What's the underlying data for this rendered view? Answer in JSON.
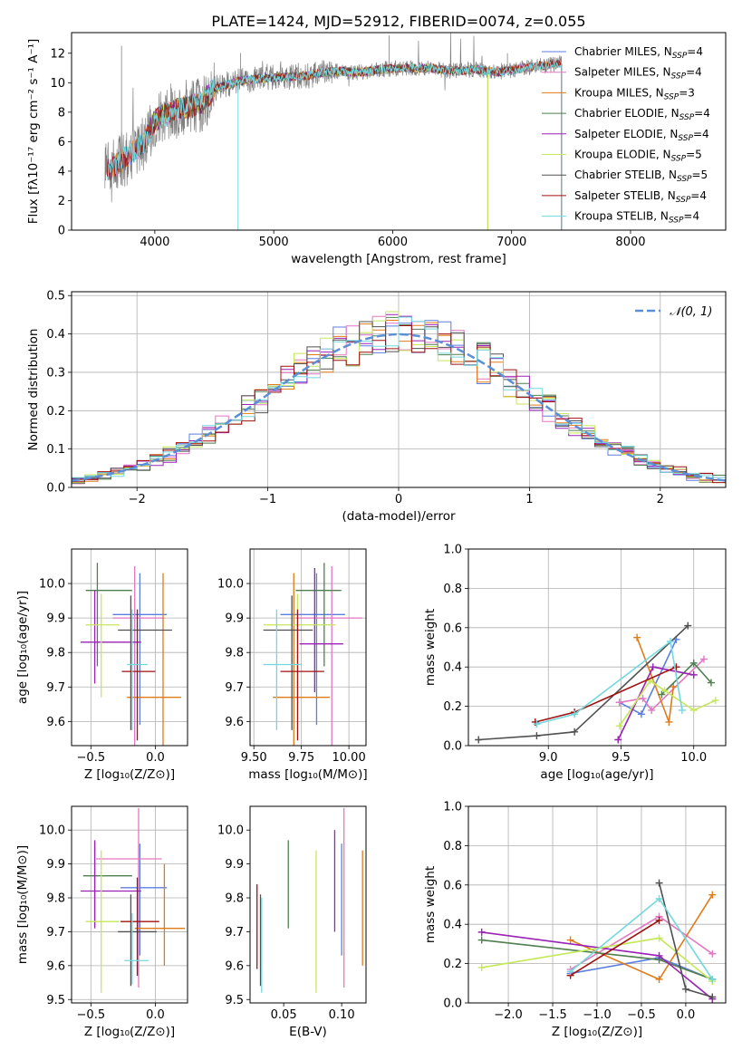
{
  "figure_title": "PLATE=1424, MJD=52912, FIBERID=0074, z=0.055",
  "palette": {
    "Chabrier MILES": "#5b7fe0",
    "Salpeter MILES": "#e377c2",
    "Kroupa MILES": "#e07b18",
    "Chabrier ELODIE": "#4f7f4f",
    "Salpeter ELODIE": "#9a22b5",
    "Kroupa ELODIE": "#c5e85a",
    "Chabrier STELIB": "#505050",
    "Salpeter STELIB": "#a01010",
    "Kroupa STELIB": "#72d8dd",
    "gaussian": "#5b8fd8",
    "data": "#808080"
  },
  "chart_data": [
    {
      "id": "spectrum",
      "type": "line",
      "title": "PLATE=1424, MJD=52912, FIBERID=0074, z=0.055",
      "xlabel": "wavelength [Angstrom, rest frame]",
      "ylabel": "Flux [fλ10⁻¹⁷ erg cm⁻² s⁻¹ A⁻¹]",
      "xlim": [
        3300,
        8800
      ],
      "ylim": [
        0,
        13.4
      ],
      "xticks": [
        4000,
        5000,
        6000,
        7000,
        8000
      ],
      "yticks": [
        0,
        2,
        4,
        6,
        8,
        10,
        12
      ],
      "grid": false,
      "legend_position": "right",
      "legend": [
        {
          "label": "Chabrier MILES, N",
          "sub": "SSP",
          "tail": "=4"
        },
        {
          "label": "Salpeter MILES, N",
          "sub": "SSP",
          "tail": "=4"
        },
        {
          "label": "Kroupa MILES, N",
          "sub": "SSP",
          "tail": "=3"
        },
        {
          "label": "Chabrier ELODIE, N",
          "sub": "SSP",
          "tail": "=4"
        },
        {
          "label": "Salpeter ELODIE, N",
          "sub": "SSP",
          "tail": "=4"
        },
        {
          "label": "Kroupa ELODIE, N",
          "sub": "SSP",
          "tail": "=5"
        },
        {
          "label": "Chabrier STELIB, N",
          "sub": "SSP",
          "tail": "=5"
        },
        {
          "label": "Salpeter STELIB, N",
          "sub": "SSP",
          "tail": "=4"
        },
        {
          "label": "Kroupa STELIB, N",
          "sub": "SSP",
          "tail": "=4"
        }
      ],
      "model_continuum": {
        "x": [
          3600,
          3700,
          3800,
          3900,
          4000,
          4100,
          4200,
          4300,
          4400,
          4500,
          4700,
          4900,
          5100,
          5300,
          5500,
          5700,
          5900,
          6100,
          6300,
          6500,
          6700,
          6900,
          7100,
          7300,
          7400
        ],
        "y": [
          4.0,
          4.6,
          5.2,
          5.9,
          7.4,
          7.9,
          8.2,
          8.4,
          8.7,
          9.6,
          10.1,
          10.3,
          10.4,
          10.5,
          10.8,
          10.7,
          10.9,
          11.0,
          11.0,
          10.8,
          10.9,
          10.7,
          11.0,
          11.2,
          11.3
        ]
      },
      "data_range": [
        3580,
        7420
      ],
      "model_ranges": {
        "MILES": [
          3600,
          7420
        ],
        "ELODIE": [
          3900,
          6800
        ],
        "STELIB": [
          3600,
          7420
        ]
      }
    },
    {
      "id": "residuals",
      "type": "histogram",
      "xlabel": "(data-model)/error",
      "ylabel": "Normed distribution",
      "xlim": [
        -2.5,
        2.5
      ],
      "ylim": [
        0,
        0.51
      ],
      "xticks": [
        -2,
        -1,
        0,
        1,
        2
      ],
      "yticks": [
        0.0,
        0.1,
        0.2,
        0.3,
        0.4,
        0.5
      ],
      "grid": true,
      "legend_position": "top-right",
      "reference": {
        "label": "𝒩(0, 1)",
        "mean": 0,
        "sigma": 1
      },
      "bin_width": 0.1,
      "bin_start": -2.5
    },
    {
      "id": "age-vs-Z",
      "type": "errorbar",
      "xlabel": "Z [log₁₀(Z/Z⊙)]",
      "ylabel": "age  [log₁₀(age/yr)]",
      "xlim": [
        -0.65,
        0.25
      ],
      "ylim": [
        9.53,
        10.1
      ],
      "xticks": [
        -0.5,
        0.0
      ],
      "yticks": [
        9.6,
        9.7,
        9.8,
        9.9,
        10.0
      ],
      "grid": true,
      "points": [
        {
          "model": "Chabrier MILES",
          "x": -0.12,
          "y": 9.91,
          "xerr": [
            0.21,
            0.21
          ],
          "yerr": [
            0.32,
            0.12
          ]
        },
        {
          "model": "Salpeter MILES",
          "x": -0.16,
          "y": 9.9,
          "xerr": [
            0.17,
            0.23
          ],
          "yerr": [
            0.37,
            0.15
          ]
        },
        {
          "model": "Kroupa MILES",
          "x": 0.06,
          "y": 9.67,
          "xerr": [
            0.28,
            0.14
          ],
          "yerr": [
            0.19,
            0.36
          ]
        },
        {
          "model": "Chabrier ELODIE",
          "x": -0.45,
          "y": 9.98,
          "xerr": [
            0.09,
            0.27
          ],
          "yerr": [
            0.22,
            0.08
          ]
        },
        {
          "model": "Salpeter ELODIE",
          "x": -0.47,
          "y": 9.83,
          "xerr": [
            0.11,
            0.36
          ],
          "yerr": [
            0.12,
            0.15
          ]
        },
        {
          "model": "Kroupa ELODIE",
          "x": -0.42,
          "y": 9.88,
          "xerr": [
            0.12,
            0.14
          ],
          "yerr": [
            0.21,
            0.09
          ]
        },
        {
          "model": "Chabrier STELIB",
          "x": -0.19,
          "y": 9.865,
          "xerr": [
            0.1,
            0.32
          ],
          "yerr": [
            0.29,
            0.1
          ]
        },
        {
          "model": "Salpeter STELIB",
          "x": -0.14,
          "y": 9.745,
          "xerr": [
            0.12,
            0.14
          ],
          "yerr": [
            0.2,
            0.18
          ]
        },
        {
          "model": "Kroupa STELIB",
          "x": -0.18,
          "y": 9.765,
          "xerr": [
            0.04,
            0.12
          ],
          "yerr": [
            0.19,
            0.16
          ]
        }
      ]
    },
    {
      "id": "age-vs-mass",
      "type": "errorbar",
      "xlabel": "mass [log₁₀(M/M⊙)]",
      "ylabel": "",
      "xlim": [
        9.48,
        10.09
      ],
      "ylim": [
        9.53,
        10.1
      ],
      "xticks": [
        9.5,
        9.75,
        10.0
      ],
      "yticks": [
        9.6,
        9.7,
        9.8,
        9.9,
        10.0
      ],
      "grid": true,
      "points": [
        {
          "model": "Chabrier MILES",
          "x": 9.83,
          "y": 9.91,
          "xerr": [
            0.19,
            0.15
          ],
          "yerr": [
            0.32,
            0.12
          ]
        },
        {
          "model": "Salpeter MILES",
          "x": 9.91,
          "y": 9.9,
          "xerr": [
            0.19,
            0.16
          ],
          "yerr": [
            0.37,
            0.15
          ]
        },
        {
          "model": "Kroupa MILES",
          "x": 9.71,
          "y": 9.67,
          "xerr": [
            0.11,
            0.19
          ],
          "yerr": [
            0.19,
            0.36
          ]
        },
        {
          "model": "Chabrier ELODIE",
          "x": 9.87,
          "y": 9.98,
          "xerr": [
            0.15,
            0.09
          ],
          "yerr": [
            0.22,
            0.08
          ]
        },
        {
          "model": "Salpeter ELODIE",
          "x": 9.82,
          "y": 9.825,
          "xerr": [
            0.08,
            0.15
          ],
          "yerr": [
            0.14,
            0.22
          ]
        },
        {
          "model": "Kroupa ELODIE",
          "x": 9.73,
          "y": 9.88,
          "xerr": [
            0.18,
            0.2
          ],
          "yerr": [
            0.21,
            0.09
          ]
        },
        {
          "model": "Chabrier STELIB",
          "x": 9.7,
          "y": 9.865,
          "xerr": [
            0.15,
            0.11
          ],
          "yerr": [
            0.29,
            0.1
          ]
        },
        {
          "model": "Salpeter STELIB",
          "x": 9.73,
          "y": 9.745,
          "xerr": [
            0.09,
            0.14
          ],
          "yerr": [
            0.2,
            0.18
          ]
        },
        {
          "model": "Kroupa STELIB",
          "x": 9.62,
          "y": 9.765,
          "xerr": [
            0.07,
            0.13
          ],
          "yerr": [
            0.19,
            0.16
          ]
        }
      ]
    },
    {
      "id": "weight-vs-age",
      "type": "line",
      "xlabel": "age  [log₁₀(age/yr)]",
      "ylabel": "mass weight",
      "xlim": [
        8.45,
        10.22
      ],
      "ylim": [
        0.0,
        1.0
      ],
      "xticks": [
        9.0,
        9.5,
        10.0
      ],
      "yticks": [
        0.0,
        0.2,
        0.4,
        0.6,
        0.8,
        1.0
      ],
      "grid": true,
      "series": [
        {
          "model": "Chabrier MILES",
          "x": [
            9.49,
            9.64,
            9.88
          ],
          "y": [
            0.22,
            0.16,
            0.54
          ]
        },
        {
          "model": "Salpeter MILES",
          "x": [
            9.49,
            9.65,
            9.71,
            10.07
          ],
          "y": [
            0.22,
            0.24,
            0.18,
            0.44
          ]
        },
        {
          "model": "Kroupa MILES",
          "x": [
            9.61,
            9.83,
            9.86
          ],
          "y": [
            0.55,
            0.12,
            0.3
          ]
        },
        {
          "model": "Chabrier ELODIE",
          "x": [
            9.78,
            10.0,
            10.12
          ],
          "y": [
            0.26,
            0.42,
            0.32
          ]
        },
        {
          "model": "Salpeter ELODIE",
          "x": [
            9.48,
            9.72,
            10.0
          ],
          "y": [
            0.03,
            0.4,
            0.36
          ]
        },
        {
          "model": "Kroupa ELODIE",
          "x": [
            9.49,
            9.7,
            9.8,
            10.0,
            10.15
          ],
          "y": [
            0.1,
            0.33,
            0.28,
            0.18,
            0.23
          ]
        },
        {
          "model": "Chabrier STELIB",
          "x": [
            8.52,
            8.92,
            9.18,
            9.96
          ],
          "y": [
            0.03,
            0.05,
            0.07,
            0.61
          ]
        },
        {
          "model": "Salpeter STELIB",
          "x": [
            8.91,
            9.18,
            9.88
          ],
          "y": [
            0.12,
            0.17,
            0.4
          ]
        },
        {
          "model": "Kroupa STELIB",
          "x": [
            8.92,
            9.18,
            9.84,
            9.92
          ],
          "y": [
            0.11,
            0.16,
            0.53,
            0.18
          ]
        }
      ]
    },
    {
      "id": "mass-vs-Z",
      "type": "errorbar",
      "xlabel": "Z [log₁₀(Z/Z⊙)]",
      "ylabel": "mass [log₁₀(M/M⊙)]",
      "xlim": [
        -0.65,
        0.25
      ],
      "ylim": [
        9.49,
        10.07
      ],
      "xticks": [
        -0.5,
        0.0
      ],
      "yticks": [
        9.5,
        9.6,
        9.7,
        9.8,
        9.9,
        10.0
      ],
      "grid": true,
      "points": [
        {
          "model": "Chabrier MILES",
          "x": -0.12,
          "y": 9.83,
          "xerr": [
            0.15,
            0.21
          ],
          "yerr": [
            0.2,
            0.13
          ]
        },
        {
          "model": "Salpeter MILES",
          "x": -0.13,
          "y": 9.915,
          "xerr": [
            0.33,
            0.18
          ],
          "yerr": [
            0.38,
            0.15
          ]
        },
        {
          "model": "Kroupa MILES",
          "x": 0.07,
          "y": 9.71,
          "xerr": [
            0.23,
            0.16
          ],
          "yerr": [
            0.11,
            0.19
          ]
        },
        {
          "model": "Chabrier ELODIE",
          "x": -0.47,
          "y": 9.865,
          "xerr": [
            0.09,
            0.29
          ],
          "yerr": [
            0.15,
            0.1
          ]
        },
        {
          "model": "Salpeter ELODIE",
          "x": -0.47,
          "y": 9.82,
          "xerr": [
            0.11,
            0.36
          ],
          "yerr": [
            0.11,
            0.15
          ]
        },
        {
          "model": "Kroupa ELODIE",
          "x": -0.42,
          "y": 9.73,
          "xerr": [
            0.12,
            0.14
          ],
          "yerr": [
            0.21,
            0.21
          ]
        },
        {
          "model": "Chabrier STELIB",
          "x": -0.19,
          "y": 9.7,
          "xerr": [
            0.1,
            0.2
          ],
          "yerr": [
            0.16,
            0.11
          ]
        },
        {
          "model": "Salpeter STELIB",
          "x": -0.14,
          "y": 9.73,
          "xerr": [
            0.13,
            0.17
          ],
          "yerr": [
            0.16,
            0.13
          ]
        },
        {
          "model": "Kroupa STELIB",
          "x": -0.18,
          "y": 9.615,
          "xerr": [
            0.06,
            0.13
          ],
          "yerr": [
            0.07,
            0.14
          ]
        }
      ]
    },
    {
      "id": "mass-vs-ebv",
      "type": "errorbar",
      "xlabel": "E(B-V)",
      "ylabel": "",
      "xlim": [
        0.021,
        0.121
      ],
      "ylim": [
        9.49,
        10.07
      ],
      "xticks": [
        0.05,
        0.1
      ],
      "yticks": [
        9.5,
        9.6,
        9.7,
        9.8,
        9.9,
        10.0
      ],
      "grid": false,
      "points": [
        {
          "model": "Chabrier MILES",
          "x": 0.1,
          "y": 9.83,
          "xerr": [
            0,
            0
          ],
          "yerr": [
            0.2,
            0.13
          ]
        },
        {
          "model": "Salpeter MILES",
          "x": 0.102,
          "y": 9.915,
          "xerr": [
            0,
            0
          ],
          "yerr": [
            0.38,
            0.15
          ]
        },
        {
          "model": "Kroupa MILES",
          "x": 0.118,
          "y": 9.77,
          "xerr": [
            0,
            0
          ],
          "yerr": [
            0.17,
            0.17
          ]
        },
        {
          "model": "Chabrier ELODIE",
          "x": 0.054,
          "y": 9.84,
          "xerr": [
            0,
            0
          ],
          "yerr": [
            0.13,
            0.13
          ]
        },
        {
          "model": "Salpeter ELODIE",
          "x": 0.094,
          "y": 9.84,
          "xerr": [
            0,
            0
          ],
          "yerr": [
            0.14,
            0.16
          ]
        },
        {
          "model": "Kroupa ELODIE",
          "x": 0.078,
          "y": 9.73,
          "xerr": [
            0,
            0
          ],
          "yerr": [
            0.21,
            0.21
          ]
        },
        {
          "model": "Chabrier STELIB",
          "x": 0.03,
          "y": 9.7,
          "xerr": [
            0,
            0
          ],
          "yerr": [
            0.16,
            0.11
          ]
        },
        {
          "model": "Salpeter STELIB",
          "x": 0.027,
          "y": 9.72,
          "xerr": [
            0,
            0
          ],
          "yerr": [
            0.13,
            0.12
          ]
        },
        {
          "model": "Kroupa STELIB",
          "x": 0.031,
          "y": 9.66,
          "xerr": [
            0,
            0
          ],
          "yerr": [
            0.14,
            0.14
          ]
        }
      ]
    },
    {
      "id": "weight-vs-Z",
      "type": "line",
      "xlabel": "Z [log₁₀(Z/Z⊙)]",
      "ylabel": "mass weight",
      "xlim": [
        -2.45,
        0.45
      ],
      "ylim": [
        0.0,
        1.0
      ],
      "xticks": [
        -2.0,
        -1.5,
        -1.0,
        -0.5,
        0.0
      ],
      "yticks": [
        0.0,
        0.2,
        0.4,
        0.6,
        0.8,
        1.0
      ],
      "grid": true,
      "series": [
        {
          "model": "Chabrier MILES",
          "x": [
            -1.3,
            -0.3,
            0.3
          ],
          "y": [
            0.15,
            0.23,
            0.12
          ]
        },
        {
          "model": "Salpeter MILES",
          "x": [
            -1.3,
            -0.3,
            0.3
          ],
          "y": [
            0.17,
            0.44,
            0.25
          ]
        },
        {
          "model": "Kroupa MILES",
          "x": [
            -1.3,
            -0.3,
            0.3
          ],
          "y": [
            0.32,
            0.12,
            0.55
          ]
        },
        {
          "model": "Chabrier ELODIE",
          "x": [
            -2.3,
            -0.3,
            0.3
          ],
          "y": [
            0.32,
            0.22,
            0.12
          ]
        },
        {
          "model": "Salpeter ELODIE",
          "x": [
            -2.3,
            -0.3,
            0.3
          ],
          "y": [
            0.36,
            0.24,
            0.02
          ]
        },
        {
          "model": "Kroupa ELODIE",
          "x": [
            -2.3,
            -0.3,
            0.3
          ],
          "y": [
            0.18,
            0.33,
            0.11
          ]
        },
        {
          "model": "Chabrier STELIB",
          "x": [
            -0.3,
            0.0,
            0.3
          ],
          "y": [
            0.61,
            0.07,
            0.03
          ]
        },
        {
          "model": "Salpeter STELIB",
          "x": [
            -1.3,
            -0.3
          ],
          "y": [
            0.14,
            0.42
          ]
        },
        {
          "model": "Kroupa STELIB",
          "x": [
            -1.3,
            -0.3,
            0.3
          ],
          "y": [
            0.16,
            0.53,
            0.12
          ]
        }
      ]
    }
  ]
}
